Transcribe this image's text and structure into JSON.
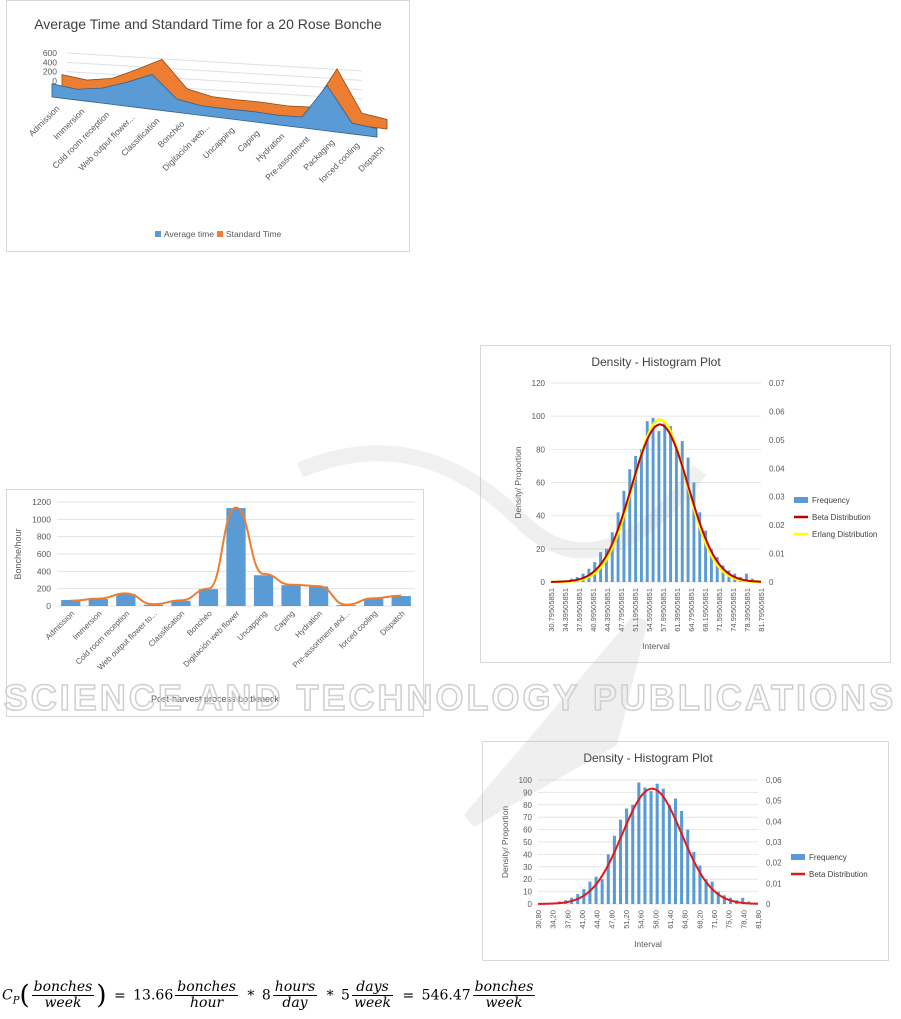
{
  "chart_data": [
    {
      "type": "area",
      "title": "Average Time and Standard Time for a 20 Rose Bonche",
      "yticks": [
        "600",
        "400",
        "200",
        "0"
      ],
      "categories": [
        "Admission",
        "Immersion",
        "Cold room reception",
        "Web output flower...",
        "Classification",
        "Bonchéo",
        "Digitación web...",
        "Uncapping",
        "Caping",
        "Hydration",
        "Pre-assortment",
        "Packaging",
        "forced cooling",
        "Dispatch"
      ],
      "series": [
        {
          "name": "Average time",
          "color": "#5b9bd5",
          "values": [
            60,
            40,
            75,
            150,
            240,
            60,
            30,
            30,
            35,
            30,
            40,
            330,
            40,
            20
          ]
        },
        {
          "name": "Standard Time",
          "color": "#ed7d31",
          "values": [
            70,
            50,
            90,
            190,
            300,
            80,
            40,
            40,
            45,
            40,
            55,
            400,
            55,
            30
          ]
        }
      ],
      "legend": "bottom",
      "grid": true
    },
    {
      "type": "bar",
      "categories": [
        "Admission",
        "Immersion",
        "Cold room reception",
        "Web output flower to...",
        "Classification",
        "Bonchéo",
        "Digitación web flower",
        "Uncapping",
        "Caping",
        "Hydration",
        "Pre-assortment and...",
        "forced cooling",
        "Dispatch"
      ],
      "values": [
        70,
        80,
        140,
        15,
        60,
        195,
        1130,
        355,
        240,
        225,
        10,
        85,
        115
      ],
      "line_values": [
        60,
        85,
        145,
        20,
        65,
        200,
        1135,
        370,
        245,
        230,
        15,
        90,
        120
      ],
      "ylabel": "Bonche/hour",
      "xlabel": "Post-harvest process bottleneck",
      "yticks": [
        "1200",
        "1000",
        "800",
        "600",
        "400",
        "200",
        "0"
      ],
      "ylim": [
        0,
        1200
      ],
      "bar_color": "#5b9bd5",
      "line_color": "#ed7d31",
      "grid": true
    },
    {
      "type": "bar",
      "title": "Density - Histogram Plot",
      "xlabel": "Interval",
      "ylabel": "Density/ Proportion",
      "ylim": [
        0,
        120
      ],
      "y2lim": [
        0,
        0.07
      ],
      "yticks_left": [
        "120",
        "100",
        "80",
        "60",
        "40",
        "20",
        "0"
      ],
      "yticks_right": [
        "0.07",
        "0.06",
        "0.05",
        "0.04",
        "0.03",
        "0.02",
        "0.01",
        "0"
      ],
      "xticks": [
        "30.79505851",
        "34.39505851",
        "37.59505851",
        "40.99505851",
        "44.39505851",
        "47.79505851",
        "51.19505851",
        "54.59505851",
        "57.99505851",
        "61.39505851",
        "64.79505851",
        "68.19505851",
        "71.59505851",
        "74.99505851",
        "78.39505851",
        "81.79505851"
      ],
      "frequency": [
        0,
        1,
        1,
        2,
        3,
        5,
        8,
        12,
        18,
        20,
        30,
        42,
        55,
        68,
        76,
        80,
        97,
        99,
        91,
        97,
        94,
        80,
        85,
        75,
        60,
        42,
        31,
        20,
        15,
        10,
        7,
        5,
        3,
        5,
        2,
        1
      ],
      "legend_items": [
        {
          "label": "Frequency",
          "color": "#5b9bd5"
        },
        {
          "label": "Beta Distribution",
          "color": "#c00000"
        },
        {
          "label": "Erlang Distribution",
          "color": "#ffff00"
        }
      ],
      "legend": "right",
      "grid": true
    },
    {
      "type": "bar",
      "title": "Density - Histogram Plot",
      "xlabel": "Interval",
      "ylabel": "Density/ Proportion",
      "ylim": [
        0,
        100
      ],
      "y2lim": [
        0,
        0.06
      ],
      "yticks_left": [
        "100",
        "90",
        "80",
        "70",
        "60",
        "50",
        "40",
        "30",
        "20",
        "10",
        "0"
      ],
      "yticks_right": [
        "0,06",
        "0,05",
        "0,04",
        "0,03",
        "0,02",
        "0,01",
        "0"
      ],
      "xticks": [
        "30,80",
        "34,20",
        "37,60",
        "41,00",
        "44,40",
        "47,80",
        "51,20",
        "54,60",
        "58,00",
        "61,40",
        "64,80",
        "68,20",
        "71,60",
        "75,00",
        "78,40",
        "81,80"
      ],
      "frequency": [
        0,
        1,
        1,
        2,
        3,
        5,
        8,
        12,
        18,
        22,
        20,
        40,
        55,
        68,
        77,
        80,
        98,
        94,
        91,
        97,
        93,
        80,
        85,
        75,
        60,
        42,
        31,
        20,
        18,
        10,
        7,
        5,
        3,
        5,
        2,
        1
      ],
      "legend_items": [
        {
          "label": "Frequency",
          "color": "#5b9bd5"
        },
        {
          "label": "Beta Distribution",
          "color": "#e0191a"
        }
      ],
      "legend": "right",
      "grid": true
    }
  ],
  "formula": {
    "lhs_sym": "C",
    "lhs_sub": "P",
    "lhs_num": "bonches",
    "lhs_den": "week",
    "v1": "13.66",
    "f1_num": "bonches",
    "f1_den": "hour",
    "v2": "8",
    "f2_num": "hours",
    "f2_den": "day",
    "v3": "5",
    "f3_num": "days",
    "f3_den": "week",
    "v4": "546.47",
    "f4_num": "bonches",
    "f4_den": "week"
  },
  "watermark": {
    "text": "SCIENCE AND TECHNOLOGY PUBLICATIONS"
  }
}
